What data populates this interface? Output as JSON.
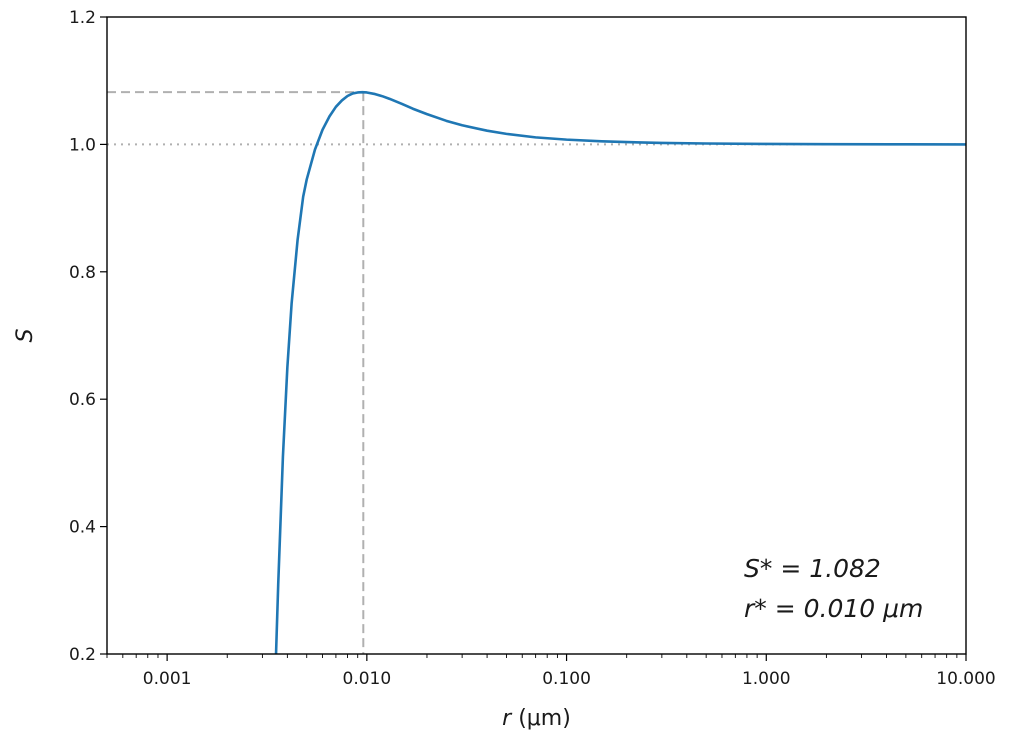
{
  "chart_data": {
    "type": "line",
    "title": "",
    "xlabel": "r (μm)",
    "ylabel": "S",
    "xscale": "log",
    "xlim": [
      0.0005,
      10.0
    ],
    "ylim": [
      0.2,
      1.2
    ],
    "x_ticks": [
      0.001,
      0.01,
      0.1,
      1.0,
      10.0
    ],
    "x_tick_labels": [
      "0.001",
      "0.010",
      "0.100",
      "1.000",
      "10.000"
    ],
    "y_ticks": [
      0.2,
      0.4,
      0.6,
      0.8,
      1.0,
      1.2
    ],
    "y_tick_labels": [
      "0.2",
      "0.4",
      "0.6",
      "0.8",
      "1.0",
      "1.2"
    ],
    "grid": false,
    "series": [
      {
        "color": "#1f77b4",
        "x": [
          0.00351,
          0.0036,
          0.0038,
          0.004,
          0.0042,
          0.0045,
          0.0048,
          0.005,
          0.0055,
          0.006,
          0.0065,
          0.007,
          0.0075,
          0.008,
          0.0085,
          0.009,
          0.0095,
          0.01,
          0.011,
          0.012,
          0.013,
          0.015,
          0.017,
          0.02,
          0.025,
          0.03,
          0.04,
          0.05,
          0.07,
          0.1,
          0.15,
          0.2,
          0.3,
          0.5,
          1.0,
          2.0,
          5.0,
          10.0
        ],
        "y": [
          0.2,
          0.31,
          0.51,
          0.65,
          0.75,
          0.85,
          0.918,
          0.945,
          0.992,
          1.023,
          1.044,
          1.059,
          1.069,
          1.076,
          1.08,
          1.0815,
          1.082,
          1.0815,
          1.079,
          1.0755,
          1.0715,
          1.0635,
          1.056,
          1.0475,
          1.037,
          1.03,
          1.0215,
          1.0165,
          1.011,
          1.0075,
          1.0048,
          1.0036,
          1.0023,
          1.0014,
          1.0007,
          1.0003,
          1.0001,
          1.0
        ]
      }
    ],
    "reference_lines": [
      {
        "orientation": "horizontal",
        "y": 1.0,
        "style": "dotted",
        "color": "#b0b0b0"
      },
      {
        "orientation": "horizontal",
        "y": 1.082,
        "x_end": 0.0096,
        "style": "dashed",
        "color": "#b0b0b0"
      },
      {
        "orientation": "vertical",
        "x": 0.0096,
        "y_end": 1.082,
        "style": "dashed",
        "color": "#b0b0b0"
      }
    ],
    "annotations": [
      "S* = 1.082",
      "r* = 0.010 μm"
    ]
  }
}
